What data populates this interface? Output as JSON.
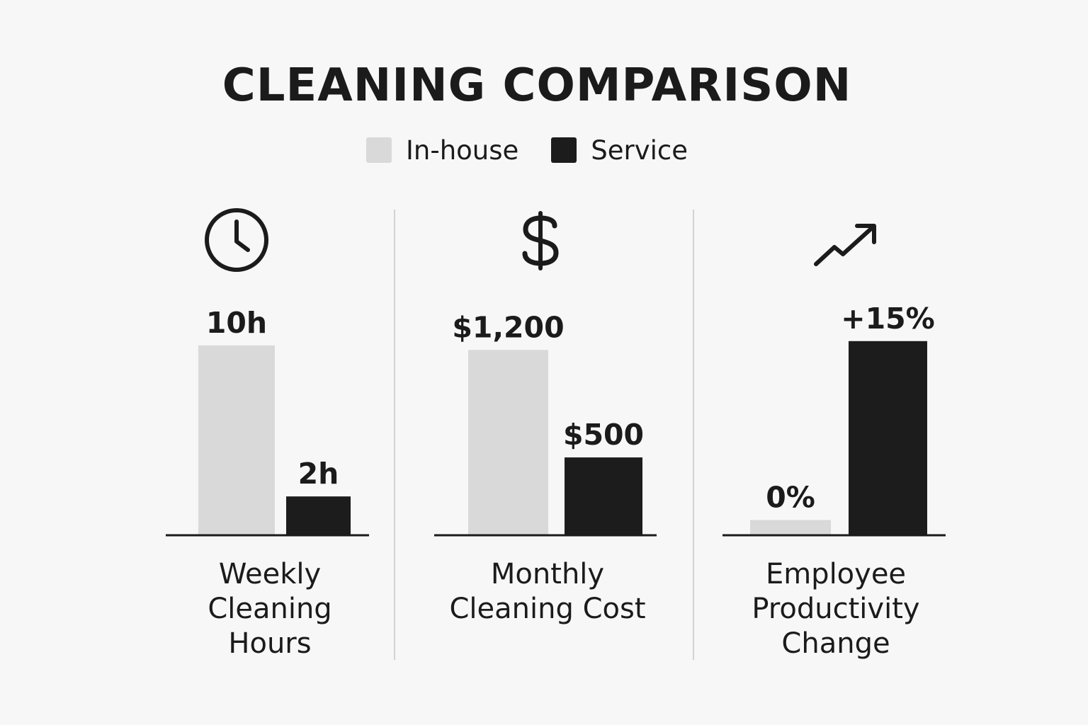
{
  "colors": {
    "in_house": "#d9d9d9",
    "service": "#1c1c1c",
    "divider": "#d2d2d2"
  },
  "chart_data": {
    "type": "bar",
    "title": "CLEANING COMPARISON",
    "legend": {
      "placement": "top-center",
      "entries": [
        {
          "name": "In-house",
          "color": "#d9d9d9"
        },
        {
          "name": "Service",
          "color": "#1c1c1c"
        }
      ]
    },
    "grid": false,
    "series": [
      {
        "name": "In-house",
        "color": "#d9d9d9"
      },
      {
        "name": "Service",
        "color": "#1c1c1c"
      }
    ],
    "panels": [
      {
        "label_lines": [
          "Weekly",
          "Cleaning",
          "Hours"
        ],
        "icon": "clock-icon",
        "values": [
          10,
          2
        ],
        "data_labels": [
          "10h",
          "2h"
        ],
        "ylim": [
          0,
          13.5
        ]
      },
      {
        "label_lines": [
          "Monthly",
          "Cleaning Cost"
        ],
        "icon": "dollar-icon",
        "values": [
          1200,
          500
        ],
        "data_labels": [
          "$1,200",
          "$500"
        ],
        "ylim": [
          0,
          1660
        ]
      },
      {
        "label_lines": [
          "Employee",
          "Productivity",
          "Change"
        ],
        "icon": "trending-up-icon",
        "values": [
          0,
          15
        ],
        "data_labels": [
          "0%",
          "+15%"
        ],
        "ylim": [
          0,
          19.8
        ]
      }
    ]
  }
}
